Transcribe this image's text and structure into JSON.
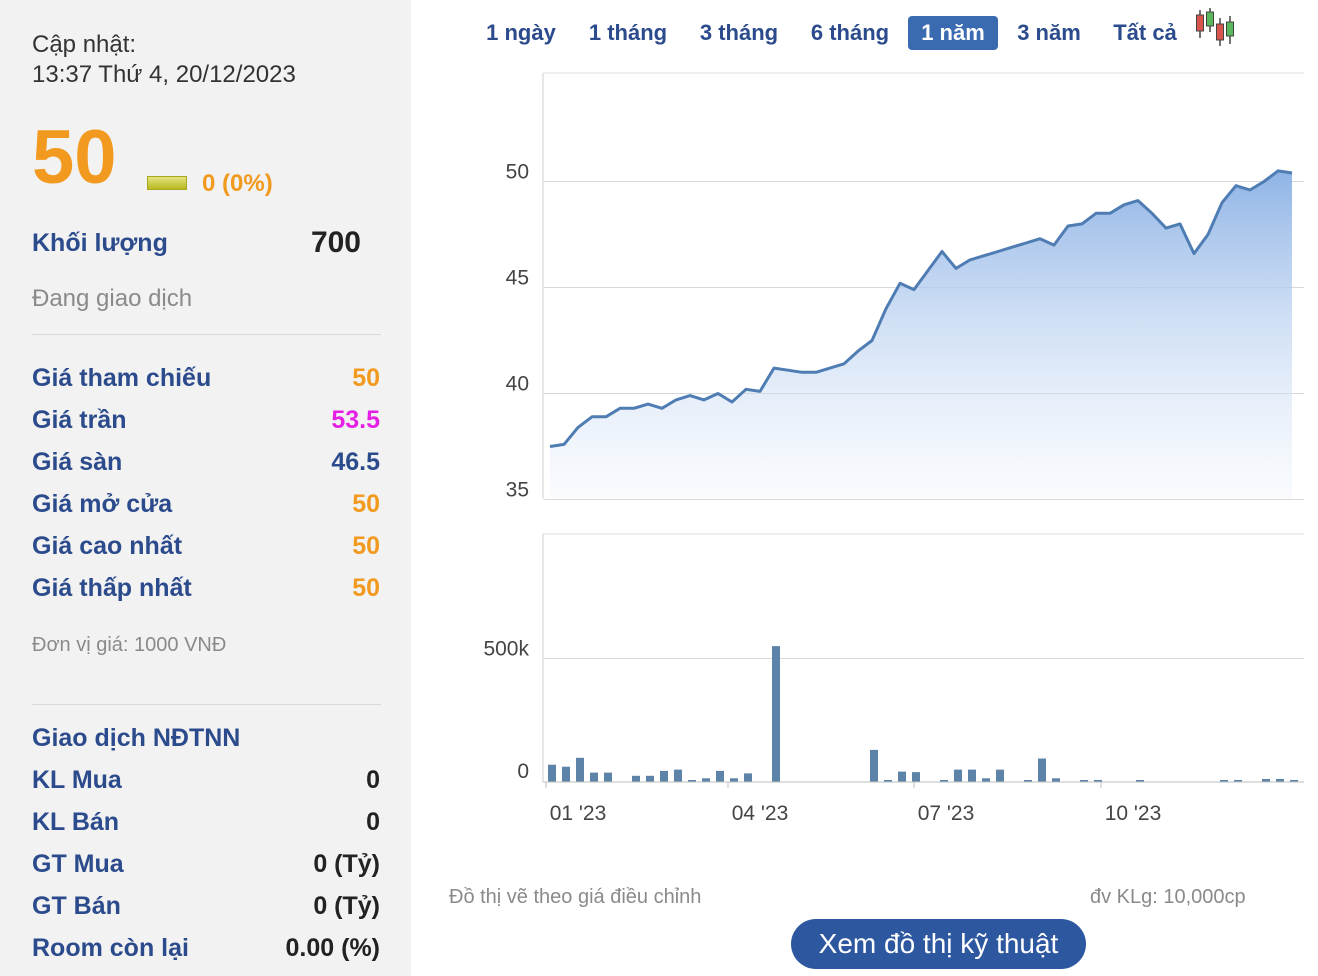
{
  "panel": {
    "update_label": "Cập nhật:",
    "update_time": "13:37 Thứ 4, 20/12/2023",
    "price": "50",
    "change": "0 (0%)",
    "volume_label": "Khối lượng",
    "volume_value": "700",
    "status": "Đang giao dịch",
    "ref_label": "Giá tham chiếu",
    "ref_value": "50",
    "ceil_label": "Giá trần",
    "ceil_value": "53.5",
    "floor_label": "Giá sàn",
    "floor_value": "46.5",
    "open_label": "Giá mở cửa",
    "open_value": "50",
    "high_label": "Giá cao nhất",
    "high_value": "50",
    "low_label": "Giá thấp nhất",
    "low_value": "50",
    "unit": "Đơn vị giá: 1000 VNĐ",
    "foreign_title": "Giao dịch NĐTNN",
    "buy_vol_label": "KL Mua",
    "buy_vol_value": "0",
    "sell_vol_label": "KL Bán",
    "sell_vol_value": "0",
    "buy_val_label": "GT Mua",
    "buy_val_value": "0 (Tỷ)",
    "sell_val_label": "GT Bán",
    "sell_val_value": "0 (Tỷ)",
    "room_label": "Room còn lại",
    "room_value": "0.00 (%)"
  },
  "tabs": [
    "1 ngày",
    "1 tháng",
    "3 tháng",
    "6 tháng",
    "1 năm",
    "3 năm",
    "Tất cả"
  ],
  "active_tab": "1 năm",
  "footer": {
    "note": "Đồ thị vẽ theo giá điều chỉnh",
    "volume_unit": "đv KLg: 10,000cp",
    "tech_button": "Xem đồ thị kỹ thuật"
  },
  "colors": {
    "price_line": "#4f7db3",
    "area_top": "#8fb4e6",
    "volume_bar": "#5d84a8",
    "accent_orange": "#f29a1f"
  },
  "chart_data": [
    {
      "type": "area",
      "x_ticks": [
        "01 '23",
        "04 '23",
        "07 '23",
        "10 '23"
      ],
      "y_ticks": [
        "35",
        "40",
        "45",
        "50"
      ],
      "ylim": [
        34.5,
        55
      ],
      "grid": true,
      "series": [
        {
          "values": [
            37.5,
            37.6,
            38.4,
            38.9,
            38.9,
            39.3,
            39.3,
            39.5,
            39.3,
            39.7,
            39.9,
            39.7,
            40.0,
            39.6,
            40.2,
            40.1,
            41.2,
            41.1,
            41.0,
            41.0,
            41.2,
            41.4,
            42.0,
            42.5,
            44.0,
            45.2,
            44.9,
            45.8,
            46.7,
            45.9,
            46.3,
            46.5,
            46.7,
            46.9,
            47.1,
            47.3,
            47.0,
            47.9,
            48.0,
            48.5,
            48.5,
            48.9,
            49.1,
            48.5,
            47.8,
            48.0,
            46.6,
            47.5,
            49.0,
            49.8,
            49.6,
            50.0,
            50.5,
            50.4
          ]
        }
      ]
    },
    {
      "type": "bar",
      "x_ticks": [
        "01 '23",
        "04 '23",
        "07 '23",
        "10 '23"
      ],
      "y_ticks": [
        "0",
        "500k"
      ],
      "ylim": [
        0,
        600000
      ],
      "grid": true,
      "series": [
        {
          "values": [
            70000,
            62000,
            98000,
            38000,
            38000,
            0,
            25000,
            25000,
            45000,
            50000,
            8000,
            15000,
            45000,
            15000,
            35000,
            0,
            550000,
            0,
            0,
            0,
            0,
            0,
            0,
            130000,
            8000,
            42000,
            40000,
            0,
            8000,
            50000,
            50000,
            15000,
            50000,
            0,
            8000,
            95000,
            15000,
            0,
            8000,
            8000,
            0,
            0,
            8000,
            0,
            0,
            0,
            0,
            0,
            8000,
            8000,
            0,
            12000,
            12000,
            8000
          ]
        }
      ]
    }
  ]
}
